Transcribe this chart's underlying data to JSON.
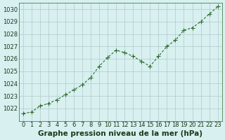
{
  "x": [
    0,
    1,
    2,
    3,
    4,
    5,
    6,
    7,
    8,
    9,
    10,
    11,
    12,
    13,
    14,
    15,
    16,
    17,
    18,
    19,
    20,
    21,
    22,
    23
  ],
  "y": [
    1021.6,
    1021.7,
    1022.2,
    1022.4,
    1022.7,
    1023.1,
    1023.5,
    1023.9,
    1024.5,
    1025.4,
    1026.1,
    1026.7,
    1026.5,
    1026.2,
    1025.8,
    1025.4,
    1026.2,
    1027.0,
    1027.5,
    1028.3,
    1028.5,
    1029.0,
    1029.6,
    1030.2
  ],
  "line_color": "#2d6a2d",
  "marker": "+",
  "marker_size": 5,
  "marker_color": "#2d6a2d",
  "bg_color": "#d8f0f0",
  "grid_color": "#b0c8c8",
  "title": "Graphe pression niveau de la mer (hPa)",
  "xlabel": "",
  "ylim": [
    1021.0,
    1030.5
  ],
  "ytick_step": 1,
  "xtick_labels": [
    "0",
    "1",
    "2",
    "3",
    "4",
    "5",
    "6",
    "7",
    "8",
    "9",
    "10",
    "11",
    "12",
    "13",
    "14",
    "15",
    "16",
    "17",
    "18",
    "19",
    "20",
    "21",
    "22",
    "23"
  ],
  "title_fontsize": 7.5,
  "title_color": "#1a3a1a",
  "tick_fontsize": 6,
  "tick_color": "#1a3a1a"
}
